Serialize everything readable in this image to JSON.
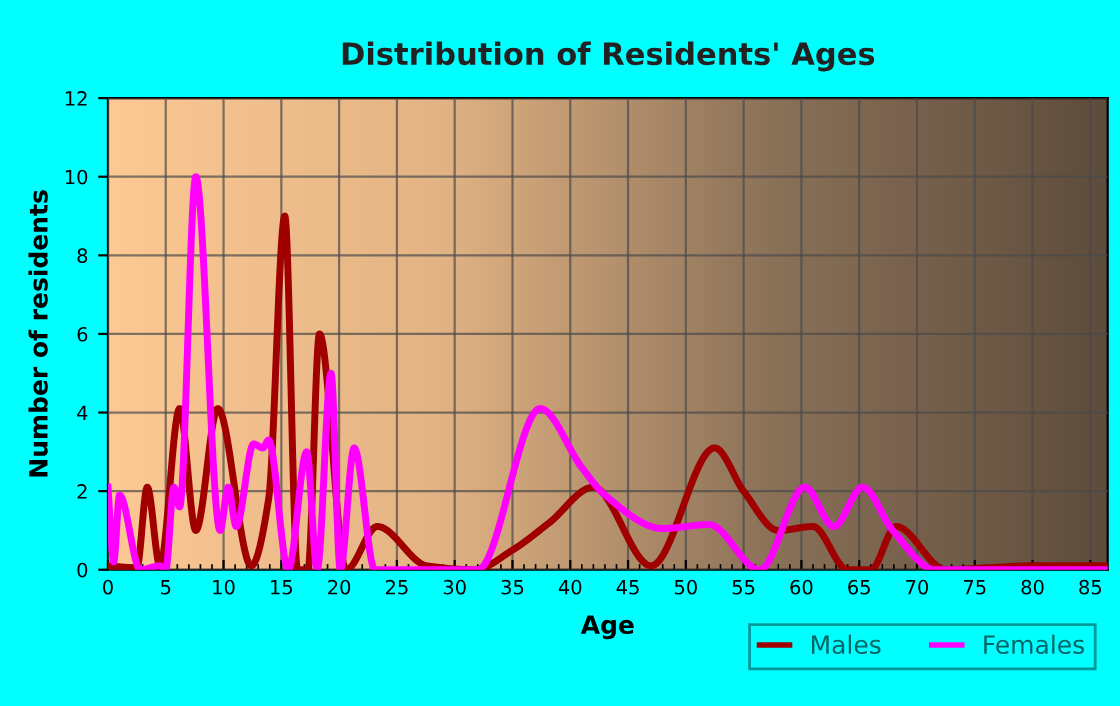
{
  "chart_data": {
    "type": "line",
    "title": "Distribution of Residents' Ages",
    "xlabel": "Age",
    "ylabel": "Number of residents",
    "xlim": [
      0,
      86.5
    ],
    "xticks": [
      0,
      5,
      10,
      15,
      20,
      25,
      30,
      35,
      40,
      45,
      50,
      55,
      60,
      65,
      70,
      75,
      80,
      85
    ],
    "ylim": [
      0,
      12
    ],
    "yticks": [
      0,
      2,
      4,
      6,
      8,
      10,
      12
    ],
    "grid": true,
    "legend": "bottom right",
    "marker": "none",
    "line_style": "solid",
    "series": [
      {
        "name": "Males",
        "color": "#a00000",
        "x": [
          0,
          2.5,
          3.4,
          4.5,
          6.2,
          7.6,
          9.5,
          12.4,
          13.9,
          15.3,
          16.4,
          17.3,
          18.3,
          20.6,
          23.3,
          27.6,
          31.7,
          35,
          38.2,
          42,
          47,
          52.5,
          55,
          58,
          61,
          64,
          66,
          68.2,
          72.5,
          76,
          80,
          86.5
        ],
        "values": [
          0.1,
          0.05,
          2.1,
          0.1,
          4.1,
          1,
          4.1,
          0.1,
          1.8,
          9,
          0,
          0,
          6,
          0,
          1.1,
          0.1,
          0,
          0.5,
          1.2,
          2.1,
          0.1,
          3.1,
          2,
          1,
          1.1,
          0,
          0,
          1.1,
          0,
          0.05,
          0.1,
          0.1
        ]
      },
      {
        "name": "Females",
        "color": "#ff00ff",
        "x": [
          0,
          0.5,
          1,
          2.8,
          4.5,
          5,
          5.7,
          6.2,
          7.6,
          9.7,
          10.4,
          11.1,
          12.6,
          13.4,
          13.9,
          15.6,
          17.2,
          18.1,
          19.3,
          20.1,
          21.3,
          23.1,
          32,
          37.4,
          41,
          43,
          48,
          52,
          56.4,
          60.3,
          62.8,
          65.3,
          67.9,
          71.6,
          75,
          86.5
        ],
        "values": [
          2.1,
          0.2,
          1.9,
          0,
          0.1,
          0,
          2.1,
          1.6,
          10,
          1,
          2.1,
          1.1,
          3.2,
          3.1,
          3.3,
          0,
          3,
          0,
          5,
          0,
          3.1,
          0,
          0,
          4.1,
          2.6,
          1.9,
          1.05,
          1.15,
          0,
          2.1,
          1.1,
          2.1,
          1,
          0,
          0,
          0
        ]
      }
    ]
  }
}
